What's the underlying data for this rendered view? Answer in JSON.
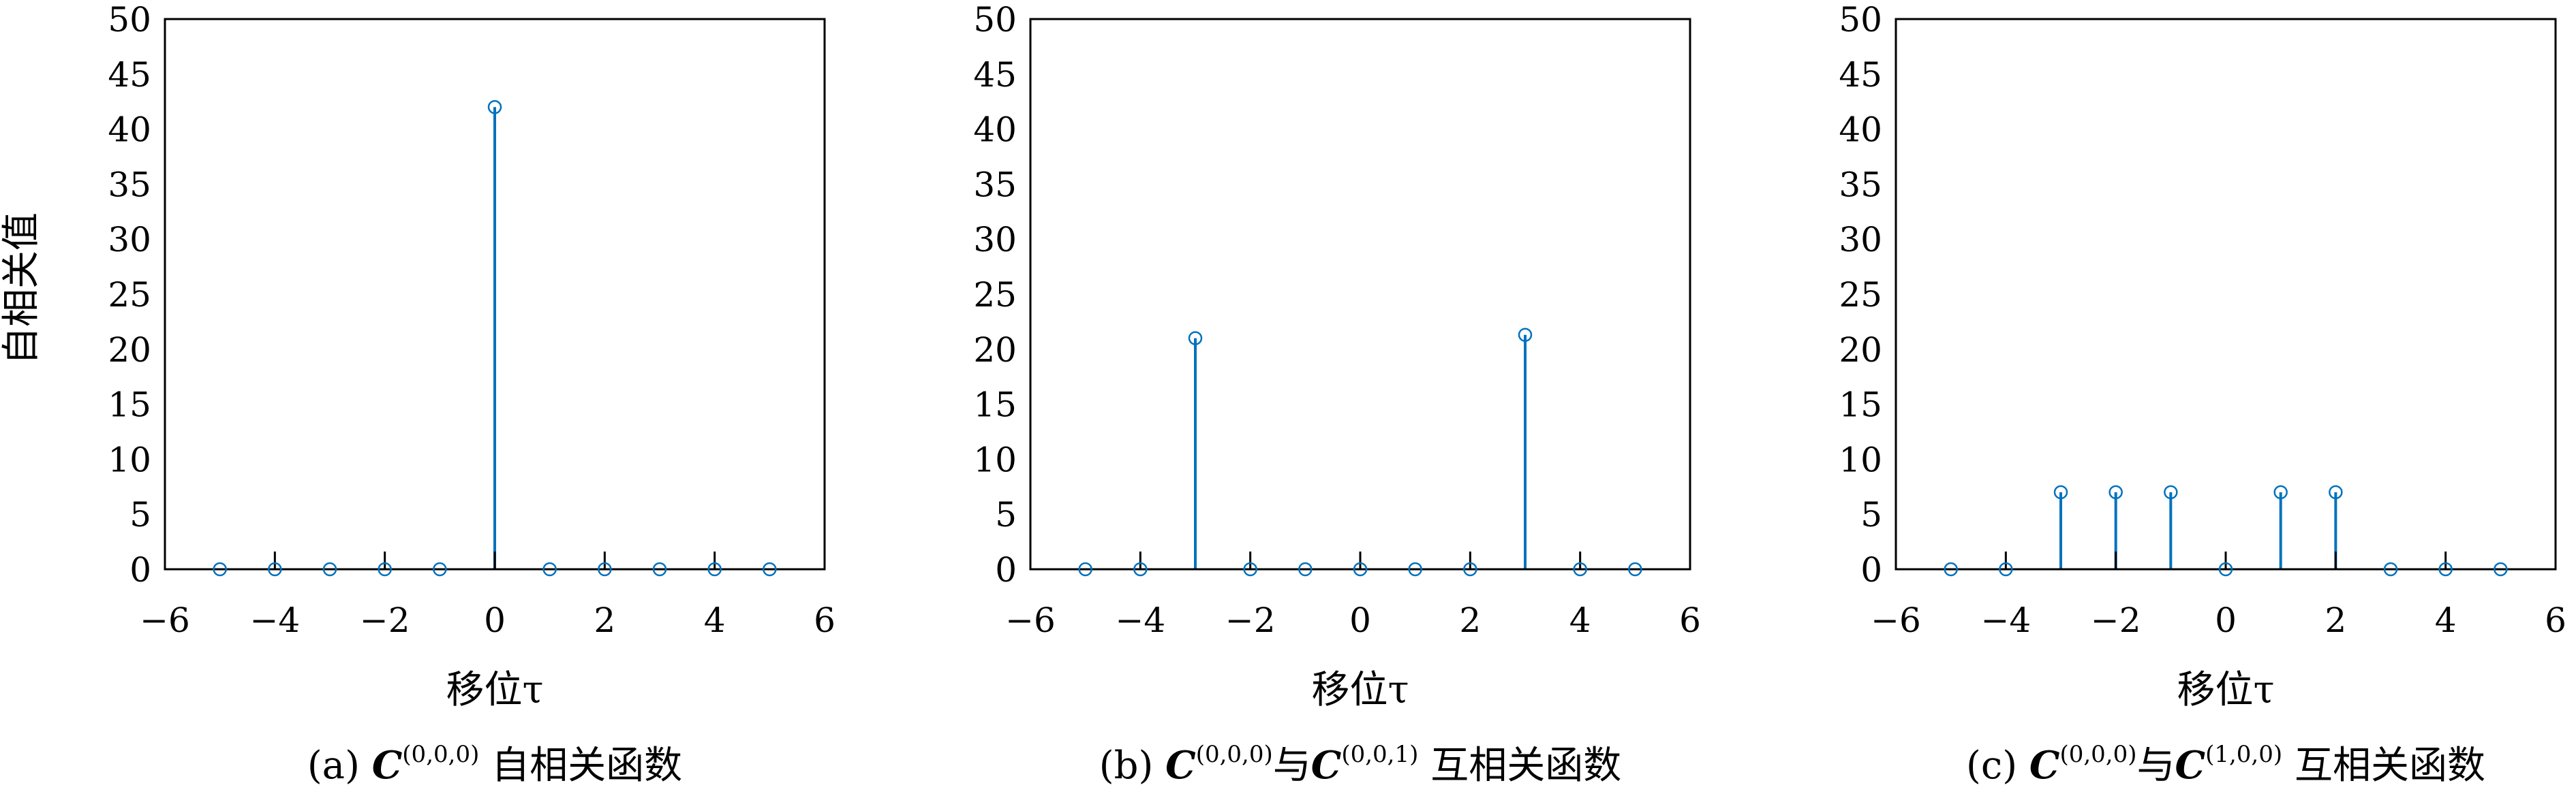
{
  "chart_data": [
    {
      "type": "stem",
      "ylabel": "自相关值",
      "xlabel": "移位τ",
      "xlim": [
        -6,
        6
      ],
      "ylim": [
        0,
        50
      ],
      "xticks": [
        -6,
        -4,
        -2,
        0,
        2,
        4,
        6
      ],
      "xtick_labels": [
        "−6",
        "−4",
        "−2",
        "0",
        "2",
        "4",
        "6"
      ],
      "yticks": [
        0,
        5,
        10,
        15,
        20,
        25,
        30,
        35,
        40,
        45,
        50
      ],
      "x": [
        -5,
        -4,
        -3,
        -2,
        -1,
        0,
        1,
        2,
        3,
        4,
        5
      ],
      "values": [
        0,
        0,
        0,
        0,
        0,
        42,
        0,
        0,
        0,
        0,
        0
      ],
      "caption": {
        "prefix": "(a) ",
        "sym1": "C",
        "sup1": "(0,0,0)",
        "middle": "",
        "sym2": "",
        "sup2": "",
        "suffix": " 自相关函数"
      },
      "grid": false,
      "color": "#0072bd"
    },
    {
      "type": "stem",
      "ylabel": "",
      "xlabel": "移位τ",
      "xlim": [
        -6,
        6
      ],
      "ylim": [
        0,
        50
      ],
      "xticks": [
        -6,
        -4,
        -2,
        0,
        2,
        4,
        6
      ],
      "xtick_labels": [
        "−6",
        "−4",
        "−2",
        "0",
        "2",
        "4",
        "6"
      ],
      "yticks": [
        0,
        5,
        10,
        15,
        20,
        25,
        30,
        35,
        40,
        45,
        50
      ],
      "x": [
        -5,
        -4,
        -3,
        -2,
        -1,
        0,
        1,
        2,
        3,
        4,
        5
      ],
      "values": [
        0,
        0,
        21,
        0,
        0,
        0,
        0,
        0,
        21.3,
        0,
        0
      ],
      "caption": {
        "prefix": "(b) ",
        "sym1": "C",
        "sup1": "(0,0,0)",
        "middle": "与",
        "sym2": "C",
        "sup2": "(0,0,1)",
        "suffix": " 互相关函数"
      },
      "grid": false,
      "color": "#0072bd"
    },
    {
      "type": "stem",
      "ylabel": "",
      "xlabel": "移位τ",
      "xlim": [
        -6,
        6
      ],
      "ylim": [
        0,
        50
      ],
      "xticks": [
        -6,
        -4,
        -2,
        0,
        2,
        4,
        6
      ],
      "xtick_labels": [
        "−6",
        "−4",
        "−2",
        "0",
        "2",
        "4",
        "6"
      ],
      "yticks": [
        0,
        5,
        10,
        15,
        20,
        25,
        30,
        35,
        40,
        45,
        50
      ],
      "x": [
        -5,
        -4,
        -3,
        -2,
        -1,
        0,
        1,
        2,
        3,
        4,
        5
      ],
      "values": [
        0,
        0,
        7,
        7,
        7,
        0,
        7,
        7,
        0,
        0,
        0
      ],
      "caption": {
        "prefix": "(c) ",
        "sym1": "C",
        "sup1": "(0,0,0)",
        "middle": "与",
        "sym2": "C",
        "sup2": "(1,0,0)",
        "suffix": " 互相关函数"
      },
      "grid": false,
      "color": "#0072bd"
    }
  ]
}
